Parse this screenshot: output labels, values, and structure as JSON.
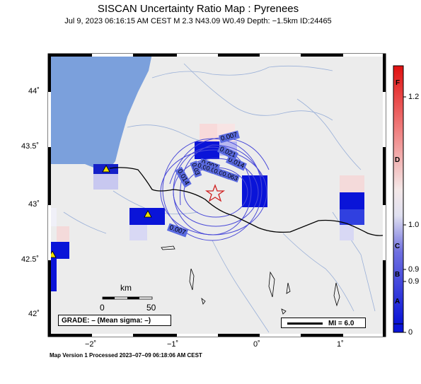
{
  "header": {
    "title": "SISCAN Uncertainty Ratio Map : Pyrenees",
    "subtitle": "Jul  9, 2023 06:16:15 AM CEST   M 2.3    N43.09 W0.49    Depth: −1.5km    ID:24465"
  },
  "axes": {
    "lat_ticks": [
      "44˚",
      "43.5˚",
      "43˚",
      "42.5˚",
      "42˚"
    ],
    "lon_ticks": [
      "−2˚",
      "−1˚",
      "0˚",
      "1˚"
    ]
  },
  "contour_labels": [
    "0.007",
    "0.014",
    "0.021",
    "0.007",
    "0.014",
    "0.03",
    "0.035",
    "0.049",
    "0.056",
    "0.063",
    "0.007"
  ],
  "scale": {
    "unit": "km",
    "min": "0",
    "max": "50"
  },
  "grade_text": "GRADE: – (Mean sigma: –)",
  "mi_text": "MI = 6.0",
  "colorbar": {
    "ticks": [
      "1.2",
      "1.0",
      "0.9",
      "0.9",
      "0"
    ],
    "grades": [
      "F",
      "D",
      "C",
      "B",
      "A"
    ]
  },
  "footer": "Map Version 1 Processed 2023−07−09 06:18:06 AM CEST",
  "colors": {
    "land": "#ececec",
    "sea": "#7ba0dc",
    "star": "#d02020",
    "station": "#f0e000",
    "contour": "#4a4ad8"
  }
}
